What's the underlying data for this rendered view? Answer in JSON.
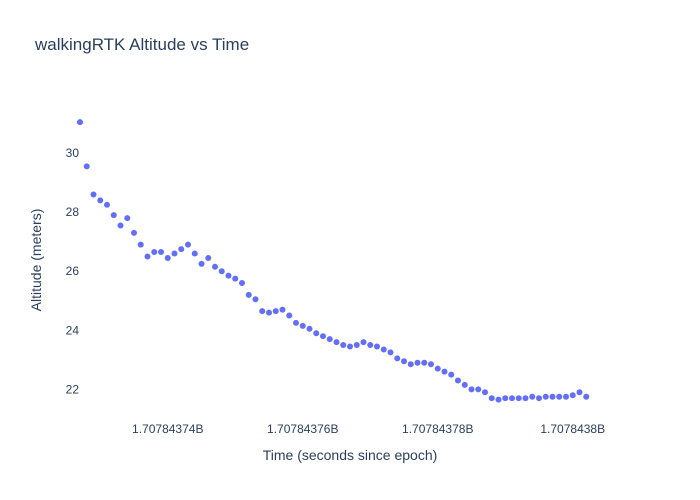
{
  "chart_data": {
    "type": "scatter",
    "title": "walkingRTK Altitude vs Time",
    "xlabel": "Time (seconds since epoch)",
    "ylabel": "Altitude (meters)",
    "xlim": [
      1707843727,
      1707843807
    ],
    "ylim": [
      21.3,
      31.8
    ],
    "grid": false,
    "legend": "none",
    "x_ticks": [
      {
        "value": 1707843740,
        "label": "1.70784374B"
      },
      {
        "value": 1707843760,
        "label": "1.70784376B"
      },
      {
        "value": 1707843780,
        "label": "1.70784378B"
      },
      {
        "value": 1707843800,
        "label": "1.7078438B"
      }
    ],
    "y_ticks": [
      {
        "value": 22,
        "label": "22"
      },
      {
        "value": 24,
        "label": "24"
      },
      {
        "value": 26,
        "label": "26"
      },
      {
        "value": 28,
        "label": "28"
      },
      {
        "value": 30,
        "label": "30"
      }
    ],
    "color": "#636efa",
    "series": [
      {
        "x": [
          1707843727,
          1707843728,
          1707843729,
          1707843730,
          1707843731,
          1707843732,
          1707843733,
          1707843734,
          1707843735,
          1707843736,
          1707843737,
          1707843738,
          1707843739,
          1707843740,
          1707843741,
          1707843742,
          1707843743,
          1707843744,
          1707843745,
          1707843746,
          1707843747,
          1707843748,
          1707843749,
          1707843750,
          1707843751,
          1707843752,
          1707843753,
          1707843754,
          1707843755,
          1707843756,
          1707843757,
          1707843758,
          1707843759,
          1707843760,
          1707843761,
          1707843762,
          1707843763,
          1707843764,
          1707843765,
          1707843766,
          1707843767,
          1707843768,
          1707843769,
          1707843770,
          1707843771,
          1707843772,
          1707843773,
          1707843774,
          1707843775,
          1707843776,
          1707843777,
          1707843778,
          1707843779,
          1707843780,
          1707843781,
          1707843782,
          1707843783,
          1707843784,
          1707843785,
          1707843786,
          1707843787,
          1707843788,
          1707843789,
          1707843790,
          1707843791,
          1707843792,
          1707843793,
          1707843794,
          1707843795,
          1707843796,
          1707843797,
          1707843798,
          1707843799,
          1707843800,
          1707843801,
          1707843802
        ],
        "y": [
          31.05,
          29.55,
          28.6,
          28.4,
          28.25,
          27.9,
          27.55,
          27.8,
          27.3,
          26.9,
          26.5,
          26.65,
          26.65,
          26.45,
          26.6,
          26.75,
          26.9,
          26.6,
          26.25,
          26.45,
          26.15,
          26.0,
          25.85,
          25.75,
          25.6,
          25.2,
          25.05,
          24.65,
          24.6,
          24.65,
          24.7,
          24.5,
          24.25,
          24.15,
          24.05,
          23.9,
          23.8,
          23.7,
          23.6,
          23.5,
          23.45,
          23.5,
          23.6,
          23.5,
          23.45,
          23.35,
          23.25,
          23.05,
          22.95,
          22.85,
          22.9,
          22.9,
          22.85,
          22.7,
          22.6,
          22.5,
          22.3,
          22.15,
          22.0,
          22.0,
          21.9,
          21.7,
          21.65,
          21.7,
          21.7,
          21.7,
          21.7,
          21.75,
          21.7,
          21.75,
          21.75,
          21.75,
          21.75,
          21.8,
          21.9,
          21.75
        ]
      }
    ]
  }
}
